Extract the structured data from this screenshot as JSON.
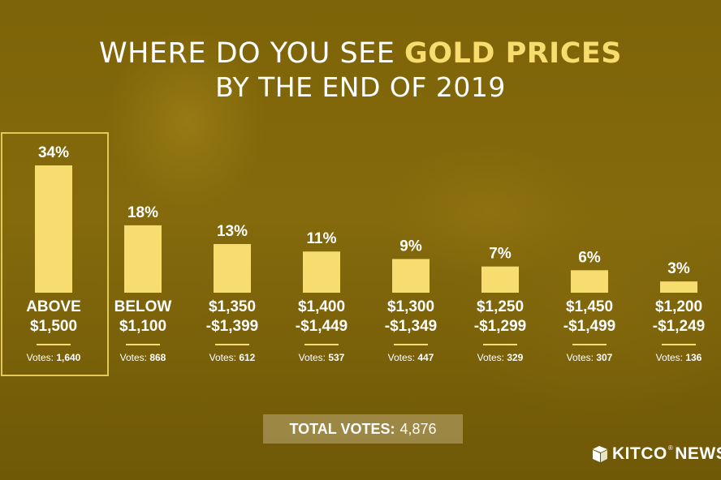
{
  "title": {
    "line1_prefix": "WHERE DO YOU SEE ",
    "line1_highlight": "GOLD PRICES",
    "line2": "BY THE END OF 2019"
  },
  "colors": {
    "bar": "#f7dc6f",
    "highlight": "#f7dc6f",
    "text": "#ffffff",
    "background": "#7e6408"
  },
  "chart_data": {
    "type": "bar",
    "categories": [
      [
        "ABOVE",
        "$1,500"
      ],
      [
        "BELOW",
        "$1,100"
      ],
      [
        "$1,350",
        "-$1,399"
      ],
      [
        "$1,400",
        "-$1,449"
      ],
      [
        "$1,300",
        "-$1,349"
      ],
      [
        "$1,250",
        "-$1,299"
      ],
      [
        "$1,450",
        "-$1,499"
      ],
      [
        "$1,200",
        "-$1,249"
      ]
    ],
    "values": [
      34,
      18,
      13,
      11,
      9,
      7,
      6,
      3
    ],
    "value_labels": [
      "34%",
      "18%",
      "13%",
      "11%",
      "9%",
      "7%",
      "6%",
      "3%"
    ],
    "votes_label": "Votes:",
    "votes": [
      "1,640",
      "868",
      "612",
      "537",
      "447",
      "329",
      "307",
      "136"
    ],
    "highlighted_index": 0,
    "unit": "%"
  },
  "total": {
    "label": "TOTAL VOTES:",
    "value": "4,876"
  },
  "logo": {
    "name": "KITCO",
    "suffix": "NEWS",
    "registered": "®",
    "icon": "kitco-cube-icon"
  }
}
